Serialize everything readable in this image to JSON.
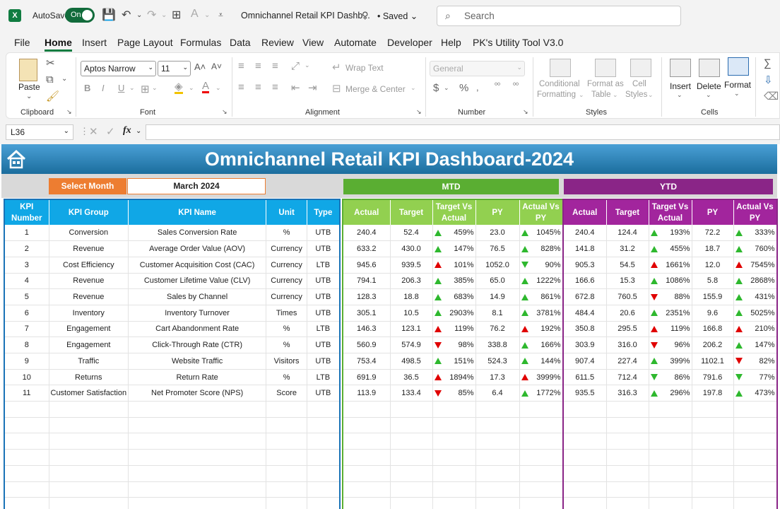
{
  "titlebar": {
    "app_icon": "X",
    "autosave_label": "AutoSave",
    "autosave_state": "On",
    "doc_title": "Omnichannel Retail KPI Dashb...",
    "saved": "• Saved",
    "search_placeholder": "Search"
  },
  "menu": [
    "File",
    "Home",
    "Insert",
    "Page Layout",
    "Formulas",
    "Data",
    "Review",
    "View",
    "Automate",
    "Developer",
    "Help",
    "PK's Utility Tool V3.0"
  ],
  "ribbon": {
    "clipboard": {
      "paste": "Paste",
      "group": "Clipboard"
    },
    "font": {
      "font_name": "Aptos Narrow",
      "font_size": "11",
      "group": "Font"
    },
    "alignment": {
      "wrap": "Wrap Text",
      "merge": "Merge & Center",
      "group": "Alignment"
    },
    "number": {
      "format": "General",
      "group": "Number"
    },
    "styles": {
      "conditional": "Conditional",
      "conditional2": "Formatting",
      "format_as": "Format as",
      "format_as2": "Table",
      "cell_styles": "Cell",
      "cell_styles2": "Styles",
      "group": "Styles"
    },
    "cells": {
      "insert": "Insert",
      "delete": "Delete",
      "format": "Format",
      "group": "Cells"
    }
  },
  "formula_bar": {
    "name_box": "L36",
    "fx": "fx",
    "content": ""
  },
  "dashboard": {
    "title": "Omnichannel Retail KPI Dashboard-2024",
    "select_month_label": "Select Month",
    "month": "March 2024",
    "mtd_label": "MTD",
    "ytd_label": "YTD",
    "left_headers": [
      "KPI Number",
      "KPI Group",
      "KPI Name",
      "Unit",
      "Type"
    ],
    "period_headers": [
      "Actual",
      "Target",
      "Target Vs Actual",
      "PY",
      "Actual Vs PY"
    ],
    "colors": {
      "mtd": "#5aae32",
      "ytd": "#8a2587",
      "left": "#10a7e6",
      "banner": "#1b6d9d",
      "select": "#ed7d31"
    },
    "rows": [
      {
        "no": "1",
        "group": "Conversion",
        "name": "Sales Conversion Rate",
        "unit": "%",
        "type": "UTB",
        "mtd": {
          "actual": "240.4",
          "target": "52.4",
          "tva": "459%",
          "tva_icon": "up-g",
          "py": "23.0",
          "avp": "1045%",
          "avp_icon": "up-g"
        },
        "ytd": {
          "actual": "240.4",
          "target": "124.4",
          "tva": "193%",
          "tva_icon": "up-g",
          "py": "72.2",
          "avp": "333%",
          "avp_icon": "up-g"
        }
      },
      {
        "no": "2",
        "group": "Revenue",
        "name": "Average Order Value (AOV)",
        "unit": "Currency",
        "type": "UTB",
        "mtd": {
          "actual": "633.2",
          "target": "430.0",
          "tva": "147%",
          "tva_icon": "up-g",
          "py": "76.5",
          "avp": "828%",
          "avp_icon": "up-g"
        },
        "ytd": {
          "actual": "141.8",
          "target": "31.2",
          "tva": "455%",
          "tva_icon": "up-g",
          "py": "18.7",
          "avp": "760%",
          "avp_icon": "up-g"
        }
      },
      {
        "no": "3",
        "group": "Cost Efficiency",
        "name": "Customer Acquisition Cost (CAC)",
        "unit": "Currency",
        "type": "LTB",
        "mtd": {
          "actual": "945.6",
          "target": "939.5",
          "tva": "101%",
          "tva_icon": "up-r",
          "py": "1052.0",
          "avp": "90%",
          "avp_icon": "dn-g"
        },
        "ytd": {
          "actual": "905.3",
          "target": "54.5",
          "tva": "1661%",
          "tva_icon": "up-r",
          "py": "12.0",
          "avp": "7545%",
          "avp_icon": "up-r"
        }
      },
      {
        "no": "4",
        "group": "Revenue",
        "name": "Customer Lifetime Value (CLV)",
        "unit": "Currency",
        "type": "UTB",
        "mtd": {
          "actual": "794.1",
          "target": "206.3",
          "tva": "385%",
          "tva_icon": "up-g",
          "py": "65.0",
          "avp": "1222%",
          "avp_icon": "up-g"
        },
        "ytd": {
          "actual": "166.6",
          "target": "15.3",
          "tva": "1086%",
          "tva_icon": "up-g",
          "py": "5.8",
          "avp": "2868%",
          "avp_icon": "up-g"
        }
      },
      {
        "no": "5",
        "group": "Revenue",
        "name": "Sales by Channel",
        "unit": "Currency",
        "type": "UTB",
        "mtd": {
          "actual": "128.3",
          "target": "18.8",
          "tva": "683%",
          "tva_icon": "up-g",
          "py": "14.9",
          "avp": "861%",
          "avp_icon": "up-g"
        },
        "ytd": {
          "actual": "672.8",
          "target": "760.5",
          "tva": "88%",
          "tva_icon": "dn-r",
          "py": "155.9",
          "avp": "431%",
          "avp_icon": "up-g"
        }
      },
      {
        "no": "6",
        "group": "Inventory",
        "name": "Inventory Turnover",
        "unit": "Times",
        "type": "UTB",
        "mtd": {
          "actual": "305.1",
          "target": "10.5",
          "tva": "2903%",
          "tva_icon": "up-g",
          "py": "8.1",
          "avp": "3781%",
          "avp_icon": "up-g"
        },
        "ytd": {
          "actual": "484.4",
          "target": "20.6",
          "tva": "2351%",
          "tva_icon": "up-g",
          "py": "9.6",
          "avp": "5025%",
          "avp_icon": "up-g"
        }
      },
      {
        "no": "7",
        "group": "Engagement",
        "name": "Cart Abandonment Rate",
        "unit": "%",
        "type": "LTB",
        "mtd": {
          "actual": "146.3",
          "target": "123.1",
          "tva": "119%",
          "tva_icon": "up-r",
          "py": "76.2",
          "avp": "192%",
          "avp_icon": "up-r"
        },
        "ytd": {
          "actual": "350.8",
          "target": "295.5",
          "tva": "119%",
          "tva_icon": "up-r",
          "py": "166.8",
          "avp": "210%",
          "avp_icon": "up-r"
        }
      },
      {
        "no": "8",
        "group": "Engagement",
        "name": "Click-Through Rate (CTR)",
        "unit": "%",
        "type": "UTB",
        "mtd": {
          "actual": "560.9",
          "target": "574.9",
          "tva": "98%",
          "tva_icon": "dn-r",
          "py": "338.8",
          "avp": "166%",
          "avp_icon": "up-g"
        },
        "ytd": {
          "actual": "303.9",
          "target": "316.0",
          "tva": "96%",
          "tva_icon": "dn-r",
          "py": "206.2",
          "avp": "147%",
          "avp_icon": "up-g"
        }
      },
      {
        "no": "9",
        "group": "Traffic",
        "name": "Website Traffic",
        "unit": "Visitors",
        "type": "UTB",
        "mtd": {
          "actual": "753.4",
          "target": "498.5",
          "tva": "151%",
          "tva_icon": "up-g",
          "py": "524.3",
          "avp": "144%",
          "avp_icon": "up-g"
        },
        "ytd": {
          "actual": "907.4",
          "target": "227.4",
          "tva": "399%",
          "tva_icon": "up-g",
          "py": "1102.1",
          "avp": "82%",
          "avp_icon": "dn-r"
        }
      },
      {
        "no": "10",
        "group": "Returns",
        "name": "Return Rate",
        "unit": "%",
        "type": "LTB",
        "mtd": {
          "actual": "691.9",
          "target": "36.5",
          "tva": "1894%",
          "tva_icon": "up-r",
          "py": "17.3",
          "avp": "3999%",
          "avp_icon": "up-r"
        },
        "ytd": {
          "actual": "611.5",
          "target": "712.4",
          "tva": "86%",
          "tva_icon": "dn-g",
          "py": "791.6",
          "avp": "77%",
          "avp_icon": "dn-g"
        }
      },
      {
        "no": "11",
        "group": "Customer Satisfaction",
        "name": "Net Promoter Score (NPS)",
        "unit": "Score",
        "type": "UTB",
        "mtd": {
          "actual": "113.9",
          "target": "133.4",
          "tva": "85%",
          "tva_icon": "dn-r",
          "py": "6.4",
          "avp": "1772%",
          "avp_icon": "up-g"
        },
        "ytd": {
          "actual": "935.5",
          "target": "316.3",
          "tva": "296%",
          "tva_icon": "up-g",
          "py": "197.8",
          "avp": "473%",
          "avp_icon": "up-g"
        }
      }
    ],
    "empty_rows": 7
  }
}
